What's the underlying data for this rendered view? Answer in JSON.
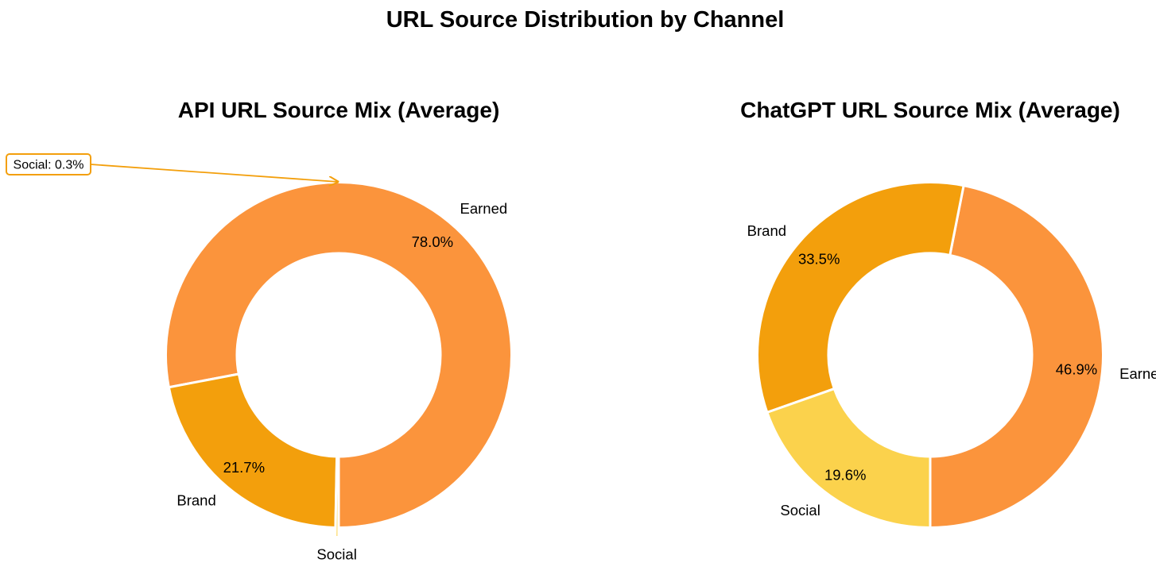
{
  "suptitle": "URL Source Distribution by Channel",
  "chart_data": [
    {
      "type": "pie",
      "subtype": "donut",
      "title": "API URL Source Mix (Average)",
      "categories": [
        "Earned",
        "Brand",
        "Social"
      ],
      "values": [
        78.0,
        21.7,
        0.3
      ],
      "value_labels": [
        "78.0%",
        "21.7%",
        ""
      ],
      "colors": [
        "#FB943C",
        "#F39F0C",
        "#FBD24C"
      ],
      "annotation": {
        "text": "Social: 0.3%",
        "target": "Social",
        "color": "#F39F0C"
      }
    },
    {
      "type": "pie",
      "subtype": "donut",
      "title": "ChatGPT URL Source Mix (Average)",
      "categories": [
        "Earned",
        "Brand",
        "Social"
      ],
      "values": [
        46.9,
        33.5,
        19.6
      ],
      "value_labels": [
        "46.9%",
        "33.5%",
        "19.6%"
      ],
      "colors": [
        "#FB943C",
        "#F39F0C",
        "#FBD24C"
      ]
    }
  ]
}
